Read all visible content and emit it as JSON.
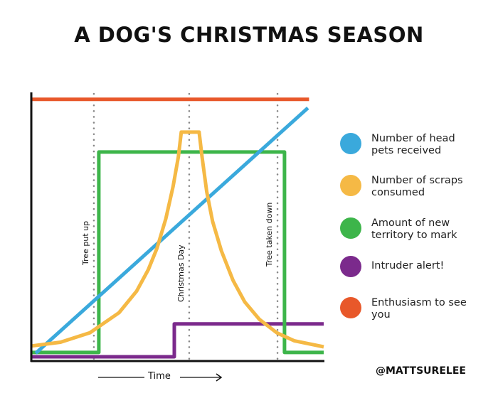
{
  "chart_data": {
    "type": "line",
    "title": "A DOG'S CHRISTMAS SEASON",
    "xlabel": "Time",
    "ylabel": "",
    "xlim": [
      0,
      100
    ],
    "ylim": [
      0,
      100
    ],
    "grid": false,
    "legend_placement": "right",
    "annotations": [
      {
        "label": "Tree put up",
        "x": 21.4
      },
      {
        "label": "Christmas Day",
        "x": 54
      },
      {
        "label": "Tree taken down",
        "x": 84.2
      }
    ],
    "series": [
      {
        "name": "Number of head pets received",
        "color": "#3aa9dc",
        "points": [
          [
            1.5,
            2.9
          ],
          [
            94.6,
            94.2
          ]
        ]
      },
      {
        "name": "Number of scraps consumed",
        "color": "#f5b945",
        "points": [
          [
            0,
            5.6
          ],
          [
            10,
            7
          ],
          [
            20,
            10.5
          ],
          [
            30,
            18
          ],
          [
            36,
            26
          ],
          [
            40,
            34
          ],
          [
            43,
            42
          ],
          [
            46,
            53
          ],
          [
            48.5,
            65
          ],
          [
            50.3,
            76
          ],
          [
            51.3,
            85.2
          ],
          [
            57.4,
            85.2
          ],
          [
            58.4,
            76
          ],
          [
            60,
            63
          ],
          [
            62,
            52
          ],
          [
            65,
            41
          ],
          [
            69,
            30
          ],
          [
            73,
            22
          ],
          [
            78,
            15.5
          ],
          [
            84,
            10.5
          ],
          [
            90,
            7.5
          ],
          [
            100,
            5.3
          ]
        ]
      },
      {
        "name": "Amount of new territory to mark",
        "color": "#3db54a",
        "points": [
          [
            0,
            3.2
          ],
          [
            23.1,
            3.2
          ],
          [
            23.1,
            77.8
          ],
          [
            86.6,
            77.8
          ],
          [
            86.6,
            3.2
          ],
          [
            100,
            3.2
          ]
        ]
      },
      {
        "name": "Intruder alert!",
        "color": "#7b2a8c",
        "points": [
          [
            0,
            1.6
          ],
          [
            48.9,
            1.6
          ],
          [
            48.9,
            13.8
          ],
          [
            100,
            13.8
          ]
        ]
      },
      {
        "name": "Enthusiasm to see you",
        "color": "#e8582a",
        "points": [
          [
            0,
            97.4
          ],
          [
            95,
            97.4
          ]
        ]
      }
    ]
  },
  "credit": "@MATTSURELEE"
}
